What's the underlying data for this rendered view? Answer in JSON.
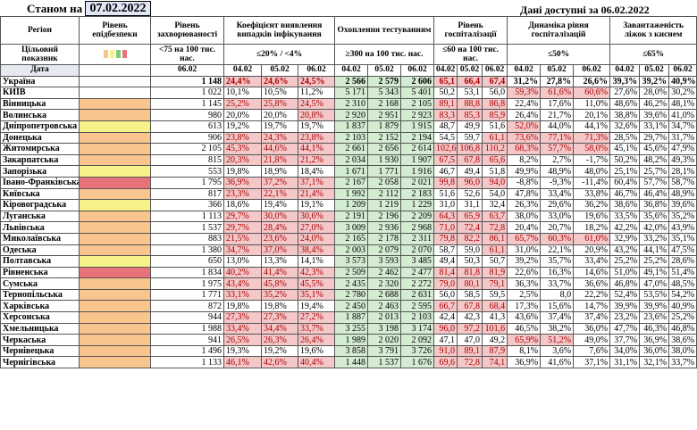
{
  "header": {
    "as_of_label": "Станом на",
    "as_of_date": "07.02.2022",
    "available": "Дані доступні за 06.02.2022"
  },
  "columns": {
    "region": "Регіон",
    "target": "Цільовий показник",
    "date": "Дата",
    "level": "Рівень епідбезпеки",
    "inc": "Рівень захворюваності",
    "inc_t": "<75 на 100 тис. нас.",
    "det": "Коефіцієнт виявлення випадків інфікування",
    "det_t": "≤20% / <4%",
    "test": "Охоплення тестуванням",
    "test_t": "≥300 на 100 тис. нас.",
    "hosp": "Рівень госпіталізації",
    "hosp_t": "≤60 на 100 тис. нас.",
    "dyn": "Динаміка рівня госпіталізацій",
    "dyn_t": "≤50%",
    "oxy": "Завантаженість ліжок з киснем",
    "oxy_t": "≤65%",
    "d1": "06.02",
    "d2": "04.02",
    "d3": "05.02",
    "d4": "06.02"
  },
  "level_colors": {
    "orange": "#f9c58e",
    "yellow": "#f5f28a",
    "red": "#e8727a",
    "none": "#ffffff"
  },
  "rows": [
    {
      "name": "Україна",
      "level": "none",
      "inc": "1 148",
      "det": [
        "24,4%",
        "24,6%",
        "24,5%"
      ],
      "test": [
        "2 566",
        "2 579",
        "2 606"
      ],
      "hosp": [
        "65,1",
        "66,4",
        "67,4"
      ],
      "dyn": [
        "31,2%",
        "27,8%",
        "26,6%"
      ],
      "oxy": [
        "39,3%",
        "39,2%",
        "40,9%"
      ]
    },
    {
      "name": "КИЇВ",
      "level": "none",
      "inc": "1 022",
      "det": [
        "10,1%",
        "10,5%",
        "11,2%"
      ],
      "test": [
        "5 171",
        "5 343",
        "5 401"
      ],
      "hosp": [
        "50,2",
        "53,1",
        "56,0"
      ],
      "dyn": [
        "59,3%",
        "61,6%",
        "60,6%"
      ],
      "oxy": [
        "27,6%",
        "28,0%",
        "30,2%"
      ]
    },
    {
      "name": "Вінницька",
      "level": "orange",
      "inc": "1 145",
      "det": [
        "25,2%",
        "25,8%",
        "24,5%"
      ],
      "test": [
        "2 310",
        "2 168",
        "2 105"
      ],
      "hosp": [
        "89,1",
        "88,8",
        "86,8"
      ],
      "dyn": [
        "22,4%",
        "17,6%",
        "11,0%"
      ],
      "oxy": [
        "48,6%",
        "46,2%",
        "48,1%"
      ]
    },
    {
      "name": "Волинська",
      "level": "orange",
      "inc": "980",
      "det": [
        "20,0%",
        "20,0%",
        "20,8%"
      ],
      "test": [
        "2 920",
        "2 951",
        "2 923"
      ],
      "hosp": [
        "83,3",
        "85,3",
        "85,9"
      ],
      "dyn": [
        "26,4%",
        "21,7%",
        "20,1%"
      ],
      "oxy": [
        "38,8%",
        "39,6%",
        "41,0%"
      ]
    },
    {
      "name": "Дніпропетровська",
      "level": "yellow",
      "inc": "613",
      "det": [
        "19,2%",
        "19,7%",
        "19,7%"
      ],
      "test": [
        "1 837",
        "1 879",
        "1 915"
      ],
      "hosp": [
        "48,7",
        "49,9",
        "51,6"
      ],
      "dyn": [
        "52,0%",
        "44,0%",
        "44,1%"
      ],
      "oxy": [
        "32,6%",
        "33,1%",
        "34,7%"
      ]
    },
    {
      "name": "Донецька",
      "level": "orange",
      "inc": "906",
      "det": [
        "23,8%",
        "24,3%",
        "23,8%"
      ],
      "test": [
        "2 103",
        "2 152",
        "2 194"
      ],
      "hosp": [
        "54,5",
        "59,7",
        "61,1"
      ],
      "dyn": [
        "73,6%",
        "77,1%",
        "71,3%"
      ],
      "oxy": [
        "28,5%",
        "29,7%",
        "31,7%"
      ]
    },
    {
      "name": "Житомирська",
      "level": "orange",
      "inc": "2 105",
      "det": [
        "45,3%",
        "44,6%",
        "44,1%"
      ],
      "test": [
        "2 661",
        "2 656",
        "2 614"
      ],
      "hosp": [
        "102,6",
        "106,8",
        "110,2"
      ],
      "dyn": [
        "68,3%",
        "57,7%",
        "58,0%"
      ],
      "oxy": [
        "45,1%",
        "45,6%",
        "47,9%"
      ]
    },
    {
      "name": "Закарпатська",
      "level": "orange",
      "inc": "815",
      "det": [
        "20,3%",
        "21,8%",
        "21,2%"
      ],
      "test": [
        "2 034",
        "1 930",
        "1 907"
      ],
      "hosp": [
        "67,5",
        "67,8",
        "65,6"
      ],
      "dyn": [
        "8,2%",
        "2,7%",
        "-1,7%"
      ],
      "oxy": [
        "50,2%",
        "48,2%",
        "49,3%"
      ]
    },
    {
      "name": "Запорізька",
      "level": "yellow",
      "inc": "553",
      "det": [
        "19,8%",
        "18,9%",
        "18,4%"
      ],
      "test": [
        "1 671",
        "1 771",
        "1 916"
      ],
      "hosp": [
        "46,7",
        "49,4",
        "51,8"
      ],
      "dyn": [
        "49,9%",
        "48,9%",
        "48,0%"
      ],
      "oxy": [
        "25,1%",
        "25,7%",
        "28,1%"
      ]
    },
    {
      "name": "Івано-Франківська",
      "level": "red",
      "inc": "1 795",
      "det": [
        "36,9%",
        "37,2%",
        "37,1%"
      ],
      "test": [
        "2 167",
        "2 058",
        "2 021"
      ],
      "hosp": [
        "99,8",
        "96,0",
        "94,0"
      ],
      "dyn": [
        "-8,8%",
        "-9,3%",
        "-11,4%"
      ],
      "oxy": [
        "60,4%",
        "57,7%",
        "58,7%"
      ]
    },
    {
      "name": "Київська",
      "level": "orange",
      "inc": "817",
      "det": [
        "23,3%",
        "22,1%",
        "21,4%"
      ],
      "test": [
        "1 992",
        "2 112",
        "2 183"
      ],
      "hosp": [
        "51,6",
        "52,6",
        "54,0"
      ],
      "dyn": [
        "47,8%",
        "33,4%",
        "33,8%"
      ],
      "oxy": [
        "46,7%",
        "46,4%",
        "48,9%"
      ]
    },
    {
      "name": "Кіровоградська",
      "level": "yellow",
      "inc": "366",
      "det": [
        "18,6%",
        "19,4%",
        "19,1%"
      ],
      "test": [
        "1 209",
        "1 219",
        "1 229"
      ],
      "hosp": [
        "31,0",
        "31,1",
        "32,4"
      ],
      "dyn": [
        "26,3%",
        "29,6%",
        "36,2%"
      ],
      "oxy": [
        "38,6%",
        "36,8%",
        "39,6%"
      ]
    },
    {
      "name": "Луганська",
      "level": "orange",
      "inc": "1 113",
      "det": [
        "29,7%",
        "30,0%",
        "30,6%"
      ],
      "test": [
        "2 191",
        "2 196",
        "2 209"
      ],
      "hosp": [
        "64,3",
        "65,9",
        "63,7"
      ],
      "dyn": [
        "38,0%",
        "33,0%",
        "19,6%"
      ],
      "oxy": [
        "33,5%",
        "35,6%",
        "35,2%"
      ]
    },
    {
      "name": "Львівська",
      "level": "orange",
      "inc": "1 537",
      "det": [
        "29,7%",
        "28,4%",
        "27,0%"
      ],
      "test": [
        "3 009",
        "2 936",
        "2 968"
      ],
      "hosp": [
        "71,0",
        "72,4",
        "72,8"
      ],
      "dyn": [
        "20,4%",
        "20,7%",
        "18,2%"
      ],
      "oxy": [
        "42,2%",
        "42,0%",
        "43,9%"
      ]
    },
    {
      "name": "Миколаївська",
      "level": "orange",
      "inc": "883",
      "det": [
        "21,5%",
        "23,6%",
        "24,0%"
      ],
      "test": [
        "2 165",
        "2 178",
        "2 311"
      ],
      "hosp": [
        "79,8",
        "82,2",
        "86,1"
      ],
      "dyn": [
        "65,7%",
        "60,3%",
        "61,0%"
      ],
      "oxy": [
        "32,9%",
        "33,2%",
        "35,1%"
      ]
    },
    {
      "name": "Одеська",
      "level": "orange",
      "inc": "1 380",
      "det": [
        "34,7%",
        "37,0%",
        "38,4%"
      ],
      "test": [
        "2 003",
        "2 079",
        "2 070"
      ],
      "hosp": [
        "58,7",
        "59,0",
        "61,1"
      ],
      "dyn": [
        "31,0%",
        "22,1%",
        "20,9%"
      ],
      "oxy": [
        "43,2%",
        "44,1%",
        "47,5%"
      ]
    },
    {
      "name": "Полтавська",
      "level": "yellow",
      "inc": "650",
      "det": [
        "13,0%",
        "13,3%",
        "14,1%"
      ],
      "test": [
        "3 573",
        "3 593",
        "3 485"
      ],
      "hosp": [
        "49,4",
        "50,3",
        "50,7"
      ],
      "dyn": [
        "39,2%",
        "35,7%",
        "33,4%"
      ],
      "oxy": [
        "25,2%",
        "25,2%",
        "28,6%"
      ]
    },
    {
      "name": "Рівненська",
      "level": "red",
      "inc": "1 834",
      "det": [
        "40,2%",
        "41,4%",
        "42,3%"
      ],
      "test": [
        "2 509",
        "2 462",
        "2 477"
      ],
      "hosp": [
        "81,4",
        "81,8",
        "81,9"
      ],
      "dyn": [
        "22,6%",
        "16,3%",
        "14,6%"
      ],
      "oxy": [
        "51,0%",
        "49,1%",
        "51,4%"
      ]
    },
    {
      "name": "Сумська",
      "level": "orange",
      "inc": "1 975",
      "det": [
        "43,4%",
        "45,8%",
        "45,5%"
      ],
      "test": [
        "2 435",
        "2 320",
        "2 272"
      ],
      "hosp": [
        "79,0",
        "80,1",
        "79,1"
      ],
      "dyn": [
        "36,3%",
        "33,7%",
        "36,6%"
      ],
      "oxy": [
        "46,8%",
        "47,0%",
        "48,5%"
      ]
    },
    {
      "name": "Тернопільська",
      "level": "orange",
      "inc": "1 771",
      "det": [
        "33,1%",
        "35,2%",
        "35,1%"
      ],
      "test": [
        "2 780",
        "2 688",
        "2 631"
      ],
      "hosp": [
        "56,0",
        "58,5",
        "59,5"
      ],
      "dyn": [
        "2,5%",
        "8,0",
        "22,2%"
      ],
      "oxy": [
        "52,4%",
        "53,5%",
        "54,2%"
      ]
    },
    {
      "name": "Харківська",
      "level": "orange",
      "inc": "872",
      "det": [
        "19,8%",
        "19,8%",
        "19,4%"
      ],
      "test": [
        "2 450",
        "2 463",
        "2 595"
      ],
      "hosp": [
        "66,7",
        "67,8",
        "68,4"
      ],
      "dyn": [
        "17,3%",
        "15,6%",
        "14,7%"
      ],
      "oxy": [
        "39,9%",
        "39,9%",
        "40,9%"
      ]
    },
    {
      "name": "Херсонська",
      "level": "orange",
      "inc": "944",
      "det": [
        "27,3%",
        "27,3%",
        "27,2%"
      ],
      "test": [
        "1 887",
        "2 013",
        "2 103"
      ],
      "hosp": [
        "42,4",
        "42,3",
        "41,3"
      ],
      "dyn": [
        "43,6%",
        "37,4%",
        "37,4%"
      ],
      "oxy": [
        "23,2%",
        "23,6%",
        "25,2%"
      ]
    },
    {
      "name": "Хмельницька",
      "level": "orange",
      "inc": "1 988",
      "det": [
        "33,4%",
        "34,4%",
        "33,7%"
      ],
      "test": [
        "3 255",
        "3 198",
        "3 174"
      ],
      "hosp": [
        "96,0",
        "97,2",
        "101,6"
      ],
      "dyn": [
        "46,5%",
        "38,2%",
        "36,0%"
      ],
      "oxy": [
        "47,7%",
        "46,3%",
        "46,8%"
      ]
    },
    {
      "name": "Черкаська",
      "level": "orange",
      "inc": "941",
      "det": [
        "26,5%",
        "26,3%",
        "26,4%"
      ],
      "test": [
        "1 989",
        "2 020",
        "2 092"
      ],
      "hosp": [
        "47,1",
        "47,0",
        "49,2"
      ],
      "dyn": [
        "65,9%",
        "51,2%",
        "49,0%"
      ],
      "oxy": [
        "37,7%",
        "36,9%",
        "38,6%"
      ]
    },
    {
      "name": "Чернівецька",
      "level": "orange",
      "inc": "1 496",
      "det": [
        "19,3%",
        "19,2%",
        "19,6%"
      ],
      "test": [
        "3 858",
        "3 791",
        "3 726"
      ],
      "hosp": [
        "91,0",
        "89,1",
        "87,9"
      ],
      "dyn": [
        "8,1%",
        "3,6%",
        "7,6%"
      ],
      "oxy": [
        "34,0%",
        "36,0%",
        "38,0%"
      ]
    },
    {
      "name": "Чернігівська",
      "level": "orange",
      "inc": "1 133",
      "det": [
        "46,1%",
        "42,6%",
        "40,4%"
      ],
      "test": [
        "1 448",
        "1 537",
        "1 676"
      ],
      "hosp": [
        "69,6",
        "72,8",
        "74,1"
      ],
      "dyn": [
        "36,9%",
        "41,6%",
        "37,1%"
      ],
      "oxy": [
        "31,1%",
        "32,1%",
        "33,7%"
      ]
    }
  ]
}
